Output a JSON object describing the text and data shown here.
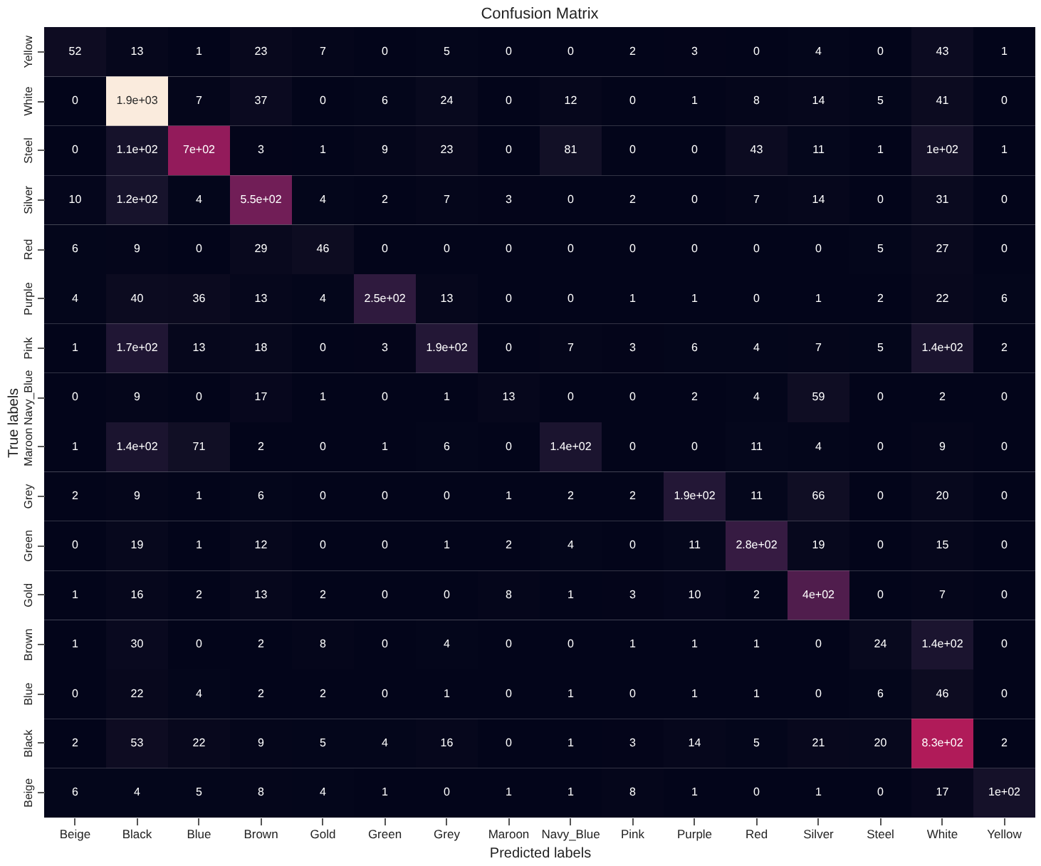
{
  "chart_data": {
    "type": "heatmap",
    "title": "Confusion Matrix",
    "xlabel": "Predicted labels",
    "ylabel": "True labels",
    "categories": [
      "Beige",
      "Black",
      "Blue",
      "Brown",
      "Gold",
      "Green",
      "Grey",
      "Maroon",
      "Navy_Blue",
      "Pink",
      "Purple",
      "Red",
      "Silver",
      "Steel",
      "White",
      "Yellow"
    ],
    "y_categories": [
      "Yellow",
      "White",
      "Steel",
      "Silver",
      "Red",
      "Purple",
      "Pink",
      "Navy_Blue",
      "Maroon",
      "Grey",
      "Green",
      "Gold",
      "Brown",
      "Blue",
      "Black",
      "Beige"
    ],
    "cells": [
      [
        52,
        13,
        1,
        23,
        7,
        0,
        5,
        0,
        0,
        2,
        3,
        0,
        4,
        0,
        43,
        1
      ],
      [
        0,
        1900,
        7,
        37,
        0,
        6,
        24,
        0,
        12,
        0,
        1,
        8,
        14,
        5,
        41,
        0
      ],
      [
        0,
        110,
        700,
        3,
        1,
        9,
        23,
        0,
        81,
        0,
        0,
        43,
        11,
        1,
        100,
        1
      ],
      [
        10,
        120,
        4,
        550,
        4,
        2,
        7,
        3,
        0,
        2,
        0,
        7,
        14,
        0,
        31,
        0
      ],
      [
        6,
        9,
        0,
        29,
        46,
        0,
        0,
        0,
        0,
        0,
        0,
        0,
        0,
        5,
        27,
        0
      ],
      [
        4,
        40,
        36,
        13,
        4,
        250,
        13,
        0,
        0,
        1,
        1,
        0,
        1,
        2,
        22,
        6
      ],
      [
        1,
        170,
        13,
        18,
        0,
        3,
        190,
        0,
        7,
        3,
        6,
        4,
        7,
        5,
        140,
        2
      ],
      [
        0,
        9,
        0,
        17,
        1,
        0,
        1,
        13,
        0,
        0,
        2,
        4,
        59,
        0,
        2,
        0
      ],
      [
        1,
        140,
        71,
        2,
        0,
        1,
        6,
        0,
        140,
        0,
        0,
        11,
        4,
        0,
        9,
        0
      ],
      [
        2,
        9,
        1,
        6,
        0,
        0,
        0,
        1,
        2,
        2,
        190,
        11,
        66,
        0,
        20,
        0
      ],
      [
        0,
        19,
        1,
        12,
        0,
        0,
        1,
        2,
        4,
        0,
        11,
        280,
        19,
        0,
        15,
        0
      ],
      [
        1,
        16,
        2,
        13,
        2,
        0,
        0,
        8,
        1,
        3,
        10,
        2,
        400,
        0,
        7,
        0
      ],
      [
        1,
        30,
        0,
        2,
        8,
        0,
        4,
        0,
        0,
        1,
        1,
        1,
        0,
        24,
        140,
        0
      ],
      [
        0,
        22,
        4,
        2,
        2,
        0,
        1,
        0,
        1,
        0,
        1,
        1,
        0,
        6,
        46,
        0
      ],
      [
        2,
        53,
        22,
        9,
        5,
        4,
        16,
        0,
        1,
        3,
        14,
        5,
        21,
        20,
        830,
        2
      ],
      [
        6,
        4,
        5,
        8,
        4,
        1,
        0,
        1,
        1,
        8,
        1,
        0,
        1,
        0,
        17,
        100
      ]
    ],
    "cell_labels": [
      [
        "52",
        "13",
        "1",
        "23",
        "7",
        "0",
        "5",
        "0",
        "0",
        "2",
        "3",
        "0",
        "4",
        "0",
        "43",
        "1"
      ],
      [
        "0",
        "1.9e+03",
        "7",
        "37",
        "0",
        "6",
        "24",
        "0",
        "12",
        "0",
        "1",
        "8",
        "14",
        "5",
        "41",
        "0"
      ],
      [
        "0",
        "1.1e+02",
        "7e+02",
        "3",
        "1",
        "9",
        "23",
        "0",
        "81",
        "0",
        "0",
        "43",
        "11",
        "1",
        "1e+02",
        "1"
      ],
      [
        "10",
        "1.2e+02",
        "4",
        "5.5e+02",
        "4",
        "2",
        "7",
        "3",
        "0",
        "2",
        "0",
        "7",
        "14",
        "0",
        "31",
        "0"
      ],
      [
        "6",
        "9",
        "0",
        "29",
        "46",
        "0",
        "0",
        "0",
        "0",
        "0",
        "0",
        "0",
        "0",
        "5",
        "27",
        "0"
      ],
      [
        "4",
        "40",
        "36",
        "13",
        "4",
        "2.5e+02",
        "13",
        "0",
        "0",
        "1",
        "1",
        "0",
        "1",
        "2",
        "22",
        "6"
      ],
      [
        "1",
        "1.7e+02",
        "13",
        "18",
        "0",
        "3",
        "1.9e+02",
        "0",
        "7",
        "3",
        "6",
        "4",
        "7",
        "5",
        "1.4e+02",
        "2"
      ],
      [
        "0",
        "9",
        "0",
        "17",
        "1",
        "0",
        "1",
        "13",
        "0",
        "0",
        "2",
        "4",
        "59",
        "0",
        "2",
        "0"
      ],
      [
        "1",
        "1.4e+02",
        "71",
        "2",
        "0",
        "1",
        "6",
        "0",
        "1.4e+02",
        "0",
        "0",
        "11",
        "4",
        "0",
        "9",
        "0"
      ],
      [
        "2",
        "9",
        "1",
        "6",
        "0",
        "0",
        "0",
        "1",
        "2",
        "2",
        "1.9e+02",
        "11",
        "66",
        "0",
        "20",
        "0"
      ],
      [
        "0",
        "19",
        "1",
        "12",
        "0",
        "0",
        "1",
        "2",
        "4",
        "0",
        "11",
        "2.8e+02",
        "19",
        "0",
        "15",
        "0"
      ],
      [
        "1",
        "16",
        "2",
        "13",
        "2",
        "0",
        "0",
        "8",
        "1",
        "3",
        "10",
        "2",
        "4e+02",
        "0",
        "7",
        "0"
      ],
      [
        "1",
        "30",
        "0",
        "2",
        "8",
        "0",
        "4",
        "0",
        "0",
        "1",
        "1",
        "1",
        "0",
        "24",
        "1.4e+02",
        "0"
      ],
      [
        "0",
        "22",
        "4",
        "2",
        "2",
        "0",
        "1",
        "0",
        "1",
        "0",
        "1",
        "1",
        "0",
        "6",
        "46",
        "0"
      ],
      [
        "2",
        "53",
        "22",
        "9",
        "5",
        "4",
        "16",
        "0",
        "1",
        "3",
        "14",
        "5",
        "21",
        "20",
        "8.3e+02",
        "2"
      ],
      [
        "6",
        "4",
        "5",
        "8",
        "4",
        "1",
        "0",
        "1",
        "1",
        "8",
        "1",
        "0",
        "1",
        "0",
        "17",
        "1e+02"
      ]
    ]
  }
}
